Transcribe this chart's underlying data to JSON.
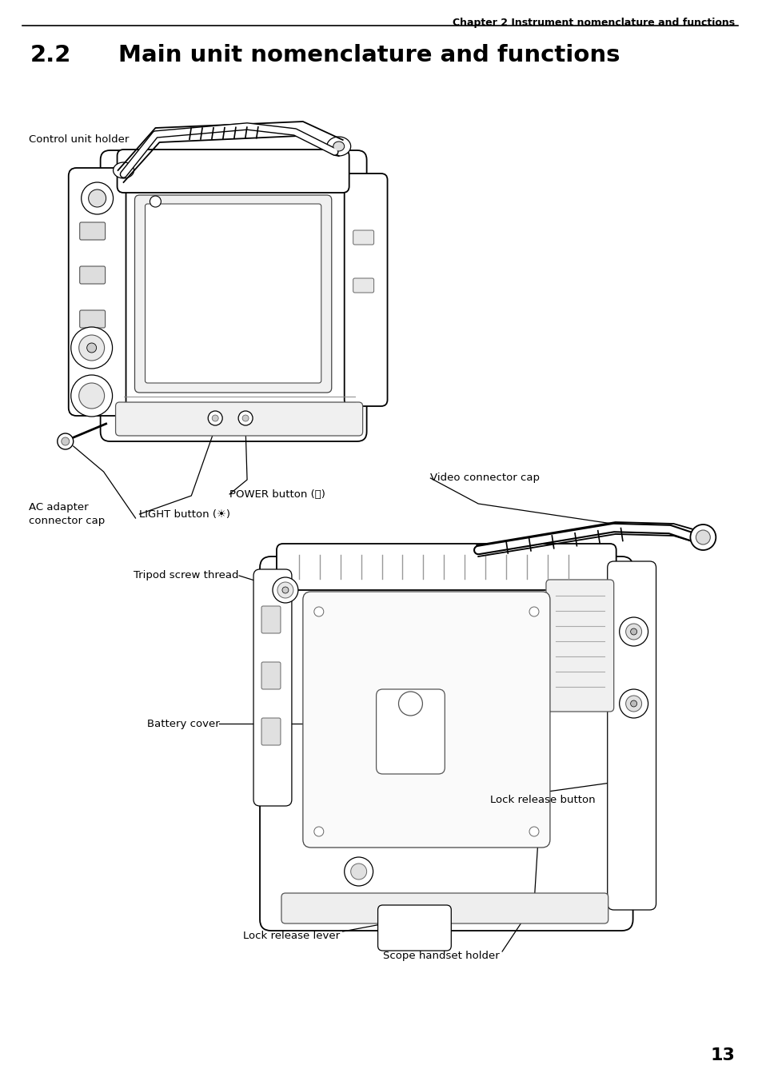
{
  "page_title": "Chapter 2 Instrument nomenclature and functions",
  "section_number": "2.2",
  "section_title": "Main unit nomenclature and functions",
  "page_number": "13",
  "bg_color": "#ffffff",
  "text_color": "#000000",
  "header_fontsize": 9,
  "section_num_fontsize": 21,
  "section_title_fontsize": 21,
  "label_fontsize": 9.5,
  "pagenum_fontsize": 16
}
